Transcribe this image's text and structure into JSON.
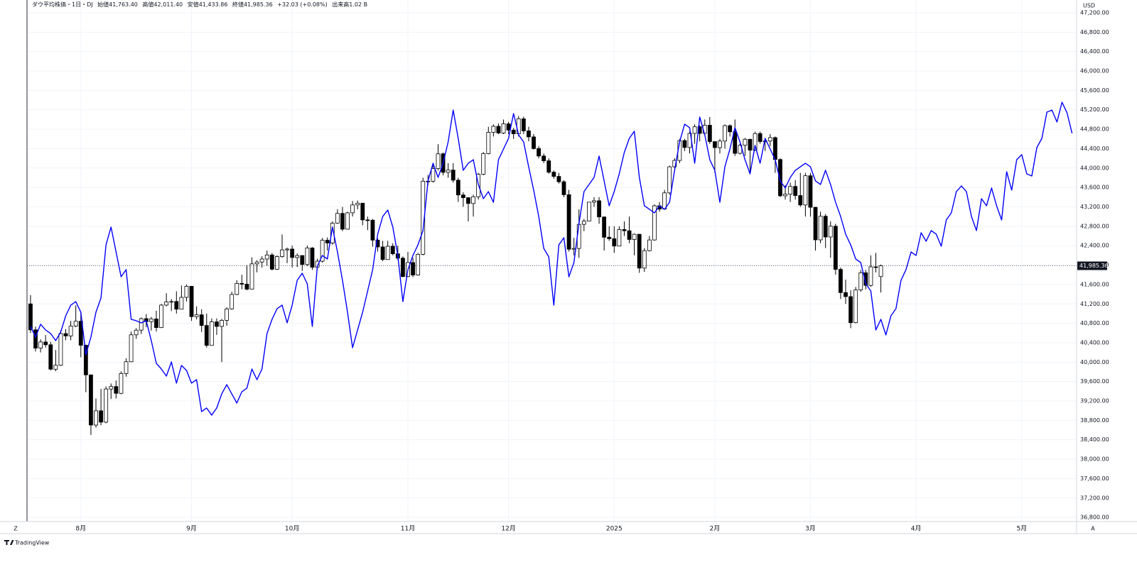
{
  "chart_data": {
    "type": "candlestick",
    "header": {
      "symbol": "ダウ平均株価・1日・DJ",
      "items": [
        {
          "label": "始値",
          "value": "41,763.40"
        },
        {
          "label": "高値",
          "value": "42,011.40"
        },
        {
          "label": "安値",
          "value": "41,433.86"
        },
        {
          "label": "終値",
          "value": "41,985.36"
        }
      ],
      "change": "+32.03 (+0.08%)",
      "volume_label": "出来高",
      "volume": "1.02 B"
    },
    "currency": "USD",
    "last_price_label": "41,985.36",
    "axis_buttons": [
      "Z",
      "A"
    ],
    "brand": "TradingView",
    "grid": true,
    "xlim": [
      -0.7,
      207.9
    ],
    "xticks": [
      {
        "value": 10,
        "label": "8月"
      },
      {
        "value": 32,
        "label": "9月"
      },
      {
        "value": 52,
        "label": "10月"
      },
      {
        "value": 75,
        "label": "11月"
      },
      {
        "value": 95,
        "label": "12月"
      },
      {
        "value": 116,
        "label": "2025"
      },
      {
        "value": 136,
        "label": "2月"
      },
      {
        "value": 155,
        "label": "3月"
      },
      {
        "value": 176,
        "label": "4月"
      },
      {
        "value": 197,
        "label": "5月"
      }
    ],
    "ylim": [
      36714,
      47463
    ],
    "yticks": [
      {
        "value": 36800,
        "label": "36,800.00"
      },
      {
        "value": 37200,
        "label": "37,200.00"
      },
      {
        "value": 37600,
        "label": "37,600.00"
      },
      {
        "value": 38000,
        "label": "38,000.00"
      },
      {
        "value": 38400,
        "label": "38,400.00"
      },
      {
        "value": 38800,
        "label": "38,800.00"
      },
      {
        "value": 39200,
        "label": "39,200.00"
      },
      {
        "value": 39600,
        "label": "39,600.00"
      },
      {
        "value": 40000,
        "label": "40,000.00"
      },
      {
        "value": 40400,
        "label": "40,400.00"
      },
      {
        "value": 40800,
        "label": "40,800.00"
      },
      {
        "value": 41200,
        "label": "41,200.00"
      },
      {
        "value": 41600,
        "label": "41,600.00"
      },
      {
        "value": 42000,
        "label": "42,000.00"
      },
      {
        "value": 42400,
        "label": "42,400.00"
      },
      {
        "value": 42800,
        "label": "42,800.00"
      },
      {
        "value": 43200,
        "label": "43,200.00"
      },
      {
        "value": 43600,
        "label": "43,600.00"
      },
      {
        "value": 44000,
        "label": "44,000.00"
      },
      {
        "value": 44400,
        "label": "44,400.00"
      },
      {
        "value": 44800,
        "label": "44,800.00"
      },
      {
        "value": 45200,
        "label": "45,200.00"
      },
      {
        "value": 45600,
        "label": "45,600.00"
      },
      {
        "value": 46000,
        "label": "46,000.00"
      },
      {
        "value": 46400,
        "label": "46,400.00"
      },
      {
        "value": 46800,
        "label": "46,800.00"
      },
      {
        "value": 47200,
        "label": "47,200.00"
      }
    ],
    "candles": {
      "up_color": "#ffffff",
      "down_color": "#000000",
      "wick_color": "#000000",
      "open": [
        41200,
        40665,
        40288,
        40415,
        40358,
        39854,
        39935,
        40589,
        40539,
        40743,
        40842,
        40347,
        39737,
        38703,
        38997,
        38763,
        39446,
        39497,
        39357,
        39765,
        40008,
        40563,
        40659,
        40896,
        40834,
        40890,
        40712,
        41175,
        41240,
        41250,
        41091,
        41335,
        41563,
        40937,
        40975,
        40755,
        40345,
        40830,
        40736,
        40861,
        41097,
        41394,
        41622,
        41606,
        41503,
        42025,
        42063,
        42125,
        42208,
        41915,
        42175,
        42313,
        42330,
        42156,
        42197,
        42012,
        42353,
        41955,
        42080,
        42512,
        42455,
        42864,
        43065,
        42740,
        43077,
        43239,
        43276,
        42931,
        42925,
        42514,
        42374,
        42114,
        42388,
        42233,
        42142,
        41763,
        42052,
        41794,
        42222,
        43729,
        43729,
        43989,
        44293,
        43911,
        43958,
        43750,
        43445,
        43389,
        43269,
        43408,
        43870,
        44296,
        44736,
        44860,
        44722,
        44911,
        44782,
        44705,
        45014,
        44766,
        44642,
        44401,
        44248,
        44149,
        43914,
        43828,
        43717,
        43450,
        42327,
        42343,
        42840,
        42907,
        43297,
        43326,
        42992,
        42574,
        42544,
        42392,
        42732,
        42707,
        42528,
        42635,
        41938,
        42297,
        42518,
        43222,
        43153,
        43488,
        44025,
        44157,
        44566,
        44424,
        44714,
        44850,
        44714,
        44882,
        44545,
        44421,
        44556,
        44873,
        44747,
        44303,
        44470,
        44593,
        44368,
        44711,
        44546,
        44556,
        44627,
        44176,
        43428,
        43461,
        43621,
        43433,
        43239,
        43841,
        43191,
        42520,
        43006,
        42579,
        42801,
        41911,
        41433,
        41350,
        40813,
        41488,
        41841,
        41581,
        41964,
        41763.4
      ],
      "high": [
        41380,
        40730,
        40470,
        40560,
        40420,
        40250,
        40660,
        40680,
        40850,
        41170,
        41030,
        40360,
        39737,
        39250,
        39450,
        39500,
        39560,
        39620,
        39810,
        40080,
        40630,
        40700,
        40920,
        40990,
        40930,
        41060,
        41200,
        41420,
        41300,
        41460,
        41580,
        41600,
        41560,
        41150,
        41090,
        41000,
        40900,
        40900,
        40890,
        41130,
        41450,
        41690,
        41800,
        42000,
        42160,
        42100,
        42180,
        42300,
        42250,
        42200,
        42630,
        42360,
        42400,
        42240,
        42200,
        42400,
        42370,
        42130,
        42560,
        42570,
        42900,
        43150,
        43200,
        43100,
        43320,
        43330,
        43280,
        43000,
        42950,
        42550,
        42500,
        42500,
        42450,
        42400,
        42180,
        42270,
        42150,
        42250,
        43800,
        43860,
        44050,
        44490,
        44320,
        44100,
        44100,
        43800,
        43500,
        43400,
        43450,
        43900,
        44330,
        44850,
        44900,
        44920,
        45000,
        44950,
        44830,
        45070,
        45060,
        44850,
        44700,
        44450,
        44300,
        44200,
        43950,
        43900,
        43750,
        43550,
        42560,
        43150,
        42950,
        43300,
        43400,
        43400,
        43000,
        42800,
        42800,
        42800,
        42900,
        43000,
        42650,
        42640,
        42350,
        42600,
        43250,
        43300,
        43550,
        44050,
        44200,
        44600,
        44600,
        44750,
        44900,
        44880,
        45000,
        45050,
        44550,
        44600,
        44900,
        44900,
        45000,
        44500,
        44620,
        44600,
        44750,
        44750,
        44600,
        44700,
        44650,
        44200,
        43650,
        43700,
        43750,
        43900,
        43900,
        43900,
        43200,
        43100,
        43050,
        42900,
        42850,
        41950,
        41700,
        41480,
        41550,
        41900,
        41900,
        42200,
        42250,
        42011.4
      ],
      "low": [
        40600,
        40220,
        40200,
        40300,
        39830,
        39810,
        39920,
        40450,
        40450,
        40720,
        40100,
        39380,
        38500,
        38650,
        38700,
        38740,
        39240,
        39250,
        39340,
        39700,
        40000,
        40480,
        40580,
        40720,
        40650,
        40630,
        40700,
        41150,
        41050,
        41000,
        41090,
        41250,
        40850,
        40880,
        40620,
        40300,
        40340,
        40560,
        40000,
        40750,
        41080,
        41380,
        41500,
        41480,
        41500,
        41850,
        41950,
        41990,
        41890,
        41900,
        42150,
        42040,
        41950,
        41960,
        41880,
        41980,
        41900,
        41900,
        42050,
        42300,
        42420,
        42850,
        42700,
        42730,
        43000,
        43150,
        42820,
        42720,
        42380,
        42280,
        42080,
        42110,
        42200,
        42100,
        41750,
        41750,
        41750,
        41780,
        42200,
        43650,
        43700,
        43950,
        43850,
        43800,
        43700,
        43300,
        43200,
        42900,
        43000,
        43350,
        43850,
        44280,
        44650,
        44700,
        44700,
        44700,
        44600,
        44650,
        44700,
        44550,
        44380,
        44200,
        44100,
        43880,
        43780,
        43680,
        43400,
        42280,
        42200,
        42150,
        42700,
        42900,
        43200,
        42850,
        42300,
        42500,
        42250,
        42390,
        42600,
        42450,
        42200,
        41840,
        41860,
        42280,
        42500,
        43100,
        43150,
        43450,
        44000,
        44100,
        44350,
        44300,
        44500,
        44550,
        44700,
        44500,
        43900,
        44300,
        44400,
        44650,
        44250,
        44280,
        44250,
        43900,
        44350,
        44500,
        44350,
        44450,
        43900,
        43400,
        43350,
        43300,
        43350,
        43200,
        43000,
        43000,
        42300,
        42450,
        42350,
        42150,
        41800,
        41300,
        41200,
        40700,
        40800,
        41450,
        41500,
        41550,
        41850,
        41433.86
      ],
      "close": [
        40665,
        40288,
        40415,
        40358,
        39854,
        39935,
        40589,
        40539,
        40743,
        40842,
        40347,
        39737,
        38703,
        38997,
        38763,
        39446,
        39497,
        39357,
        39765,
        40008,
        40563,
        40659,
        40896,
        40834,
        40890,
        40712,
        41175,
        41240,
        41250,
        41091,
        41335,
        41563,
        40937,
        40975,
        40755,
        40345,
        40830,
        40736,
        40861,
        41097,
        41394,
        41622,
        41606,
        41503,
        42025,
        42063,
        42125,
        42208,
        41915,
        42175,
        42313,
        42330,
        42156,
        42197,
        42012,
        42353,
        41955,
        42080,
        42512,
        42455,
        42864,
        43065,
        42740,
        43077,
        43239,
        43276,
        42931,
        42925,
        42514,
        42374,
        42114,
        42388,
        42233,
        42142,
        41763,
        42052,
        41794,
        42222,
        43729,
        43729,
        43989,
        44293,
        43911,
        43958,
        43750,
        43445,
        43389,
        43269,
        43408,
        43870,
        44296,
        44736,
        44860,
        44722,
        44911,
        44782,
        44705,
        45014,
        44766,
        44642,
        44401,
        44248,
        44149,
        43914,
        43828,
        43717,
        43450,
        42327,
        42343,
        42840,
        42907,
        43297,
        43326,
        42992,
        42574,
        42544,
        42392,
        42732,
        42707,
        42528,
        42635,
        41938,
        42297,
        42518,
        43222,
        43153,
        43488,
        44025,
        44157,
        44566,
        44424,
        44714,
        44850,
        44714,
        44882,
        44545,
        44421,
        44556,
        44873,
        44747,
        44303,
        44470,
        44593,
        44368,
        44711,
        44546,
        44556,
        44627,
        44176,
        43428,
        43461,
        43621,
        43433,
        43239,
        43841,
        43191,
        42520,
        43006,
        42579,
        42801,
        41911,
        41433,
        41350,
        40813,
        41488,
        41841,
        41581,
        41964,
        41953,
        41985.36
      ]
    },
    "line": {
      "color": "#0000ff",
      "values": [
        40735,
        40516,
        40780,
        40662,
        40589,
        40443,
        40619,
        40955,
        41174,
        41247,
        41028,
        40151,
        40516,
        41028,
        41321,
        42417,
        42783,
        42271,
        41759,
        41906,
        40882,
        40853,
        40809,
        40853,
        40443,
        39975,
        39858,
        39712,
        40004,
        39566,
        39931,
        39829,
        39566,
        39639,
        38980,
        39054,
        38907,
        39054,
        39346,
        39536,
        39346,
        39156,
        39390,
        39463,
        39858,
        39639,
        39858,
        40589,
        40882,
        41101,
        41174,
        40809,
        41174,
        41686,
        41832,
        41613,
        40735,
        41979,
        42198,
        42125,
        42783,
        42271,
        41686,
        41028,
        40297,
        40662,
        41028,
        41467,
        41906,
        42637,
        43002,
        43134,
        42783,
        42198,
        41247,
        41906,
        42198,
        42417,
        42710,
        43734,
        44099,
        43807,
        44099,
        44538,
        45194,
        44611,
        43953,
        44099,
        44172,
        43661,
        43368,
        43514,
        43294,
        44172,
        44392,
        44611,
        45123,
        44684,
        44538,
        44026,
        43544,
        43002,
        42345,
        42169,
        41174,
        42417,
        42564,
        41759,
        42052,
        42856,
        43514,
        43661,
        43807,
        44246,
        43734,
        43222,
        43514,
        43880,
        44319,
        44611,
        44757,
        43807,
        43222,
        43149,
        43076,
        43222,
        43149,
        43294,
        43953,
        44538,
        44904,
        44830,
        44099,
        45050,
        44684,
        44172,
        43953,
        43294,
        44026,
        44392,
        44830,
        44538,
        44172,
        43880,
        44465,
        44099,
        44611,
        44392,
        44172,
        43734,
        43588,
        43807,
        43953,
        44026,
        44099,
        44026,
        43734,
        43661,
        43953,
        43661,
        43294,
        43002,
        42637,
        42417,
        42125,
        42052,
        41613,
        41467,
        40662,
        40882,
        40560,
        40955,
        41101,
        41686,
        41906,
        42271,
        42198,
        42666,
        42491,
        42710,
        42637,
        42388,
        42929,
        43076,
        43514,
        43631,
        43514,
        43002,
        42710,
        43368,
        43222,
        43588,
        43222,
        42929,
        43924,
        43544,
        44172,
        44275,
        43880,
        43836,
        44421,
        44611,
        45152,
        45194,
        44948,
        45357,
        45138,
        44714
      ]
    }
  }
}
